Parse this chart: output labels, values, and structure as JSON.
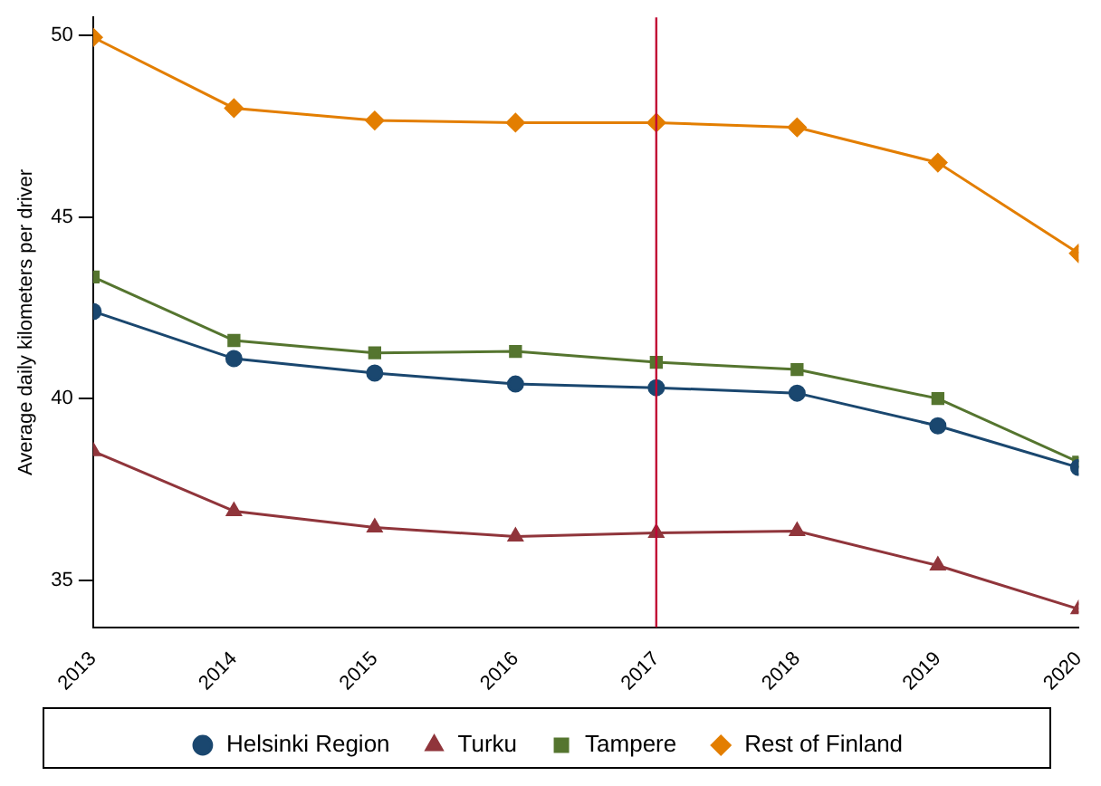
{
  "chart_data": {
    "type": "line",
    "ylabel": "Average daily kilometers per driver",
    "x": [
      2013,
      2014,
      2015,
      2016,
      2017,
      2018,
      2019,
      2020
    ],
    "xlim": [
      2013,
      2020
    ],
    "xticks": [
      2013,
      2014,
      2015,
      2016,
      2017,
      2018,
      2019,
      2020
    ],
    "ylim": [
      33.7,
      50.5
    ],
    "yticks": [
      35,
      40,
      45,
      50
    ],
    "series": [
      {
        "name": "Helsinki Region",
        "color": "#1a476f",
        "marker": "circle",
        "values": [
          42.4,
          41.1,
          40.7,
          40.4,
          40.3,
          40.15,
          39.25,
          38.1
        ]
      },
      {
        "name": "Turku",
        "color": "#90353b",
        "marker": "triangle",
        "values": [
          38.55,
          36.9,
          36.45,
          36.2,
          36.3,
          36.35,
          35.4,
          34.2
        ]
      },
      {
        "name": "Tampere",
        "color": "#55752f",
        "marker": "square",
        "values": [
          43.35,
          41.6,
          41.26,
          41.3,
          41.0,
          40.8,
          40.0,
          38.25
        ]
      },
      {
        "name": "Rest of Finland",
        "color": "#e37e00",
        "marker": "diamond",
        "values": [
          49.95,
          48.0,
          47.66,
          47.6,
          47.6,
          47.47,
          46.5,
          44.0
        ]
      }
    ],
    "ref_lines": [
      {
        "axis": "x",
        "value": 2017,
        "color": "#c10534"
      }
    ],
    "grid": false,
    "legend": "bottom"
  }
}
